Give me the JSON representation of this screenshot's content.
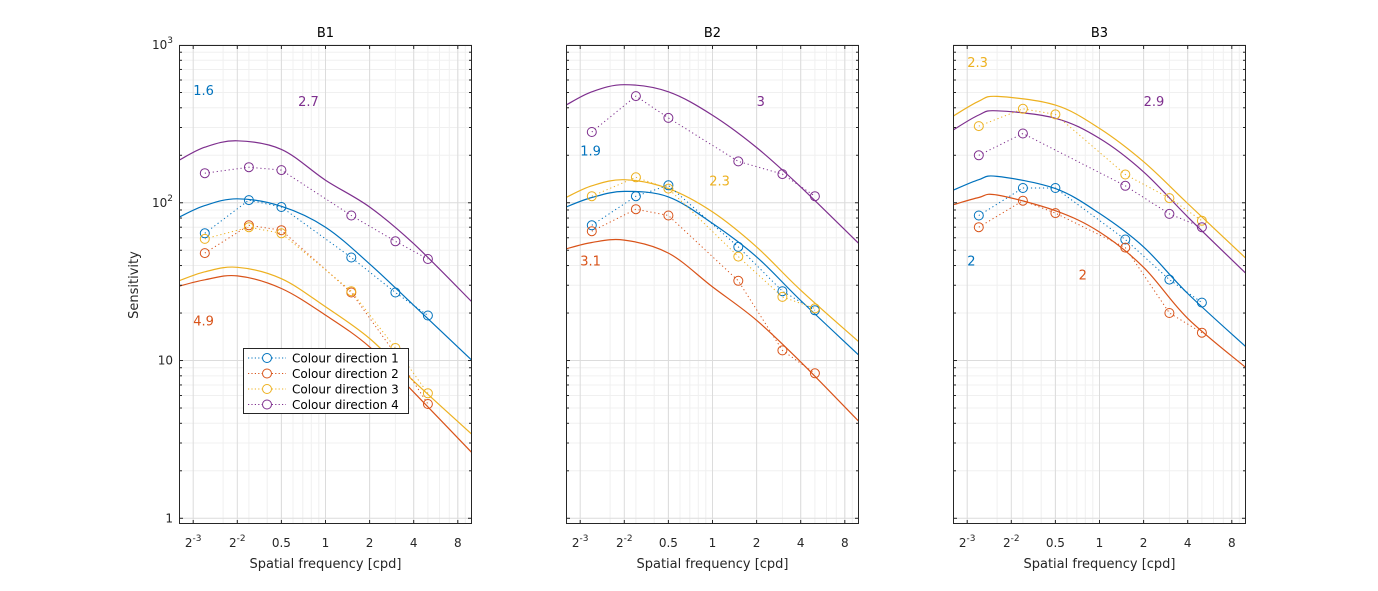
{
  "colors": {
    "Colour direction 1": "#0072BD",
    "Colour direction 2": "#D95319",
    "Colour direction 3": "#EDB120",
    "Colour direction 4": "#7E2F8E"
  },
  "legend": {
    "placement": "inside-lower-left of B1",
    "entries": [
      "Colour direction 1",
      "Colour direction 2",
      "Colour direction 3",
      "Colour direction 4"
    ]
  },
  "chart_data": [
    {
      "type": "line",
      "title": "B1",
      "xlabel": "Spatial frequency [cpd]",
      "ylabel": "Sensitivity",
      "xscale": "log",
      "yscale": "log",
      "xlim": [
        0.1,
        10
      ],
      "ylim": [
        0.92,
        1000
      ],
      "xticks": [
        0.125,
        0.25,
        0.5,
        1,
        2,
        4,
        8
      ],
      "xticklabels": [
        {
          "base": "2",
          "exp": "-3"
        },
        {
          "base": "2",
          "exp": "-2"
        },
        {
          "base": "0.5"
        },
        {
          "base": "1"
        },
        {
          "base": "2"
        },
        {
          "base": "4"
        },
        {
          "base": "8"
        }
      ],
      "yticks": [
        1,
        10,
        100,
        1000
      ],
      "yticklabels": [
        {
          "base": "1"
        },
        {
          "base": "10"
        },
        {
          "base": "10",
          "exp": "2"
        },
        {
          "base": "10",
          "exp": "3"
        }
      ],
      "grid": true,
      "show_legend": true,
      "series": [
        {
          "name": "Colour direction 1",
          "x": [
            0.15,
            0.3,
            0.5,
            1.5,
            3,
            5
          ],
          "y": [
            64,
            104,
            94,
            45,
            27,
            19.3
          ],
          "fit": {
            "x": [
              0.1,
              0.15,
              0.25,
              0.5,
              1,
              2,
              4,
              10
            ],
            "y": [
              81,
              96,
              106,
              95,
              70,
              41,
              22.4,
              10
            ]
          }
        },
        {
          "name": "Colour direction 2",
          "x": [
            0.15,
            0.3,
            0.5,
            1.5,
            3,
            5
          ],
          "y": [
            48,
            72,
            67,
            27,
            11,
            5.3
          ],
          "fit": {
            "x": [
              0.1,
              0.15,
              0.25,
              0.5,
              1,
              2,
              4,
              10
            ],
            "y": [
              29.6,
              32.5,
              34.4,
              28.6,
              19.4,
              12.2,
              6.3,
              2.6
            ]
          }
        },
        {
          "name": "Colour direction 3",
          "x": [
            0.15,
            0.3,
            0.5,
            1.5,
            3,
            5
          ],
          "y": [
            59,
            70,
            64,
            27.5,
            12,
            6.2
          ],
          "fit": {
            "x": [
              0.1,
              0.15,
              0.25,
              0.5,
              1,
              2,
              4,
              10
            ],
            "y": [
              32,
              36.5,
              39,
              33,
              21.9,
              13.8,
              7.4,
              3.4
            ]
          }
        },
        {
          "name": "Colour direction 4",
          "x": [
            0.15,
            0.3,
            0.5,
            1.5,
            3,
            5
          ],
          "y": [
            154,
            168,
            161,
            83,
            57,
            44
          ],
          "fit": {
            "x": [
              0.1,
              0.15,
              0.25,
              0.5,
              1,
              2,
              4,
              10
            ],
            "y": [
              186,
              225,
              247,
              218,
              139,
              94,
              55,
              23.5
            ]
          }
        }
      ],
      "annotations": [
        {
          "text": "1.6",
          "series": "Colour direction 1",
          "x": 0.125,
          "y": 520
        },
        {
          "text": "2.7",
          "series": "Colour direction 4",
          "x": 0.65,
          "y": 440
        },
        {
          "text": "4.9",
          "series": "Colour direction 2",
          "x": 0.125,
          "y": 18
        }
      ]
    },
    {
      "type": "line",
      "title": "B2",
      "xlabel": "Spatial frequency [cpd]",
      "ylabel": "",
      "xscale": "log",
      "yscale": "log",
      "xlim": [
        0.1,
        10
      ],
      "ylim": [
        0.92,
        1000
      ],
      "xticks": [
        0.125,
        0.25,
        0.5,
        1,
        2,
        4,
        8
      ],
      "xticklabels": [
        {
          "base": "2",
          "exp": "-3"
        },
        {
          "base": "2",
          "exp": "-2"
        },
        {
          "base": "0.5"
        },
        {
          "base": "1"
        },
        {
          "base": "2"
        },
        {
          "base": "4"
        },
        {
          "base": "8"
        }
      ],
      "yticks": [
        1,
        10,
        100,
        1000
      ],
      "yticklabels": [],
      "grid": true,
      "show_legend": false,
      "series": [
        {
          "name": "Colour direction 1",
          "x": [
            0.15,
            0.3,
            0.5,
            1.5,
            3,
            5
          ],
          "y": [
            72,
            110,
            129,
            52.5,
            27.5,
            20.8
          ],
          "fit": {
            "x": [
              0.1,
              0.15,
              0.25,
              0.5,
              1,
              2,
              4,
              10
            ],
            "y": [
              94,
              108,
              118,
              109,
              74,
              45.4,
              24,
              10.8
            ]
          }
        },
        {
          "name": "Colour direction 2",
          "x": [
            0.15,
            0.3,
            0.5,
            1.5,
            3,
            5
          ],
          "y": [
            66,
            91,
            83,
            32,
            11.6,
            8.3
          ],
          "fit": {
            "x": [
              0.1,
              0.15,
              0.25,
              0.5,
              1,
              2,
              4,
              10
            ],
            "y": [
              51,
              56,
              58,
              48,
              29.3,
              18,
              9.8,
              4.1
            ]
          }
        },
        {
          "name": "Colour direction 3",
          "x": [
            0.15,
            0.3,
            0.5,
            1.5,
            3,
            5
          ],
          "y": [
            110,
            145,
            123,
            45.6,
            25.3,
            21.4
          ],
          "fit": {
            "x": [
              0.1,
              0.15,
              0.25,
              0.5,
              1,
              2,
              4,
              10
            ],
            "y": [
              108,
              128,
              140,
              123,
              87.5,
              52.5,
              27.9,
              13.1
            ]
          }
        },
        {
          "name": "Colour direction 4",
          "x": [
            0.15,
            0.3,
            0.5,
            1.5,
            3,
            5
          ],
          "y": [
            281,
            474,
            345,
            183,
            152,
            110
          ],
          "fit": {
            "x": [
              0.1,
              0.15,
              0.25,
              0.5,
              1,
              2,
              4,
              10
            ],
            "y": [
              416,
              505,
              560,
              505,
              359,
              224,
              126,
              55
            ]
          }
        }
      ],
      "annotations": [
        {
          "text": "1.9",
          "series": "Colour direction 1",
          "x": 0.125,
          "y": 215
        },
        {
          "text": "3.1",
          "series": "Colour direction 2",
          "x": 0.125,
          "y": 43
        },
        {
          "text": "2.3",
          "series": "Colour direction 3",
          "x": 0.95,
          "y": 138
        },
        {
          "text": "3",
          "series": "Colour direction 4",
          "x": 2,
          "y": 440
        }
      ]
    },
    {
      "type": "line",
      "title": "B3",
      "xlabel": "Spatial frequency [cpd]",
      "ylabel": "",
      "xscale": "log",
      "yscale": "log",
      "xlim": [
        0.1,
        10
      ],
      "ylim": [
        0.92,
        1000
      ],
      "xticks": [
        0.125,
        0.25,
        0.5,
        1,
        2,
        4,
        8
      ],
      "xticklabels": [
        {
          "base": "2",
          "exp": "-3"
        },
        {
          "base": "2",
          "exp": "-2"
        },
        {
          "base": "0.5"
        },
        {
          "base": "1"
        },
        {
          "base": "2"
        },
        {
          "base": "4"
        },
        {
          "base": "8"
        }
      ],
      "yticks": [
        1,
        10,
        100,
        1000
      ],
      "yticklabels": [],
      "grid": true,
      "show_legend": false,
      "series": [
        {
          "name": "Colour direction 1",
          "x": [
            0.15,
            0.3,
            0.5,
            1.5,
            3,
            5
          ],
          "y": [
            83,
            124,
            124,
            58.5,
            32.6,
            23.3
          ],
          "fit": {
            "x": [
              0.1,
              0.15,
              0.2,
              0.5,
              1,
              2,
              4,
              10
            ],
            "y": [
              120,
              140,
              147,
              123,
              85.6,
              52.5,
              26.6,
              12.2
            ]
          }
        },
        {
          "name": "Colour direction 2",
          "x": [
            0.15,
            0.3,
            0.5,
            1.5,
            3,
            5
          ],
          "y": [
            70,
            103,
            86,
            52,
            20,
            15
          ],
          "fit": {
            "x": [
              0.1,
              0.15,
              0.2,
              0.5,
              1,
              2,
              4,
              10
            ],
            "y": [
              97,
              108,
              112,
              89,
              65.3,
              39,
              18.5,
              9
            ]
          }
        },
        {
          "name": "Colour direction 3",
          "x": [
            0.15,
            0.3,
            0.5,
            1.5,
            3,
            5
          ],
          "y": [
            306,
            394,
            363,
            151,
            107,
            77
          ],
          "fit": {
            "x": [
              0.1,
              0.15,
              0.2,
              0.5,
              1,
              2,
              4,
              10
            ],
            "y": [
              354,
              440,
              472,
              416,
              296,
              182,
              99,
              44.4
            ]
          }
        },
        {
          "name": "Colour direction 4",
          "x": [
            0.15,
            0.3,
            0.5,
            1.5,
            3,
            5
          ],
          "y": [
            200,
            275,
            null,
            128,
            85,
            70
          ],
          "fit": {
            "x": [
              0.1,
              0.15,
              0.2,
              0.5,
              1,
              2,
              4,
              10
            ],
            "y": [
              289,
              360,
              383,
              343,
              256,
              157,
              81.4,
              35.6
            ]
          }
        }
      ],
      "annotations": [
        {
          "text": "2.3",
          "series": "Colour direction 3",
          "x": 0.125,
          "y": 780
        },
        {
          "text": "2.9",
          "series": "Colour direction 4",
          "x": 2,
          "y": 440
        },
        {
          "text": "2",
          "series": "Colour direction 1",
          "x": 0.125,
          "y": 43
        },
        {
          "text": "2",
          "series": "Colour direction 2",
          "x": 0.72,
          "y": 35
        }
      ]
    }
  ]
}
